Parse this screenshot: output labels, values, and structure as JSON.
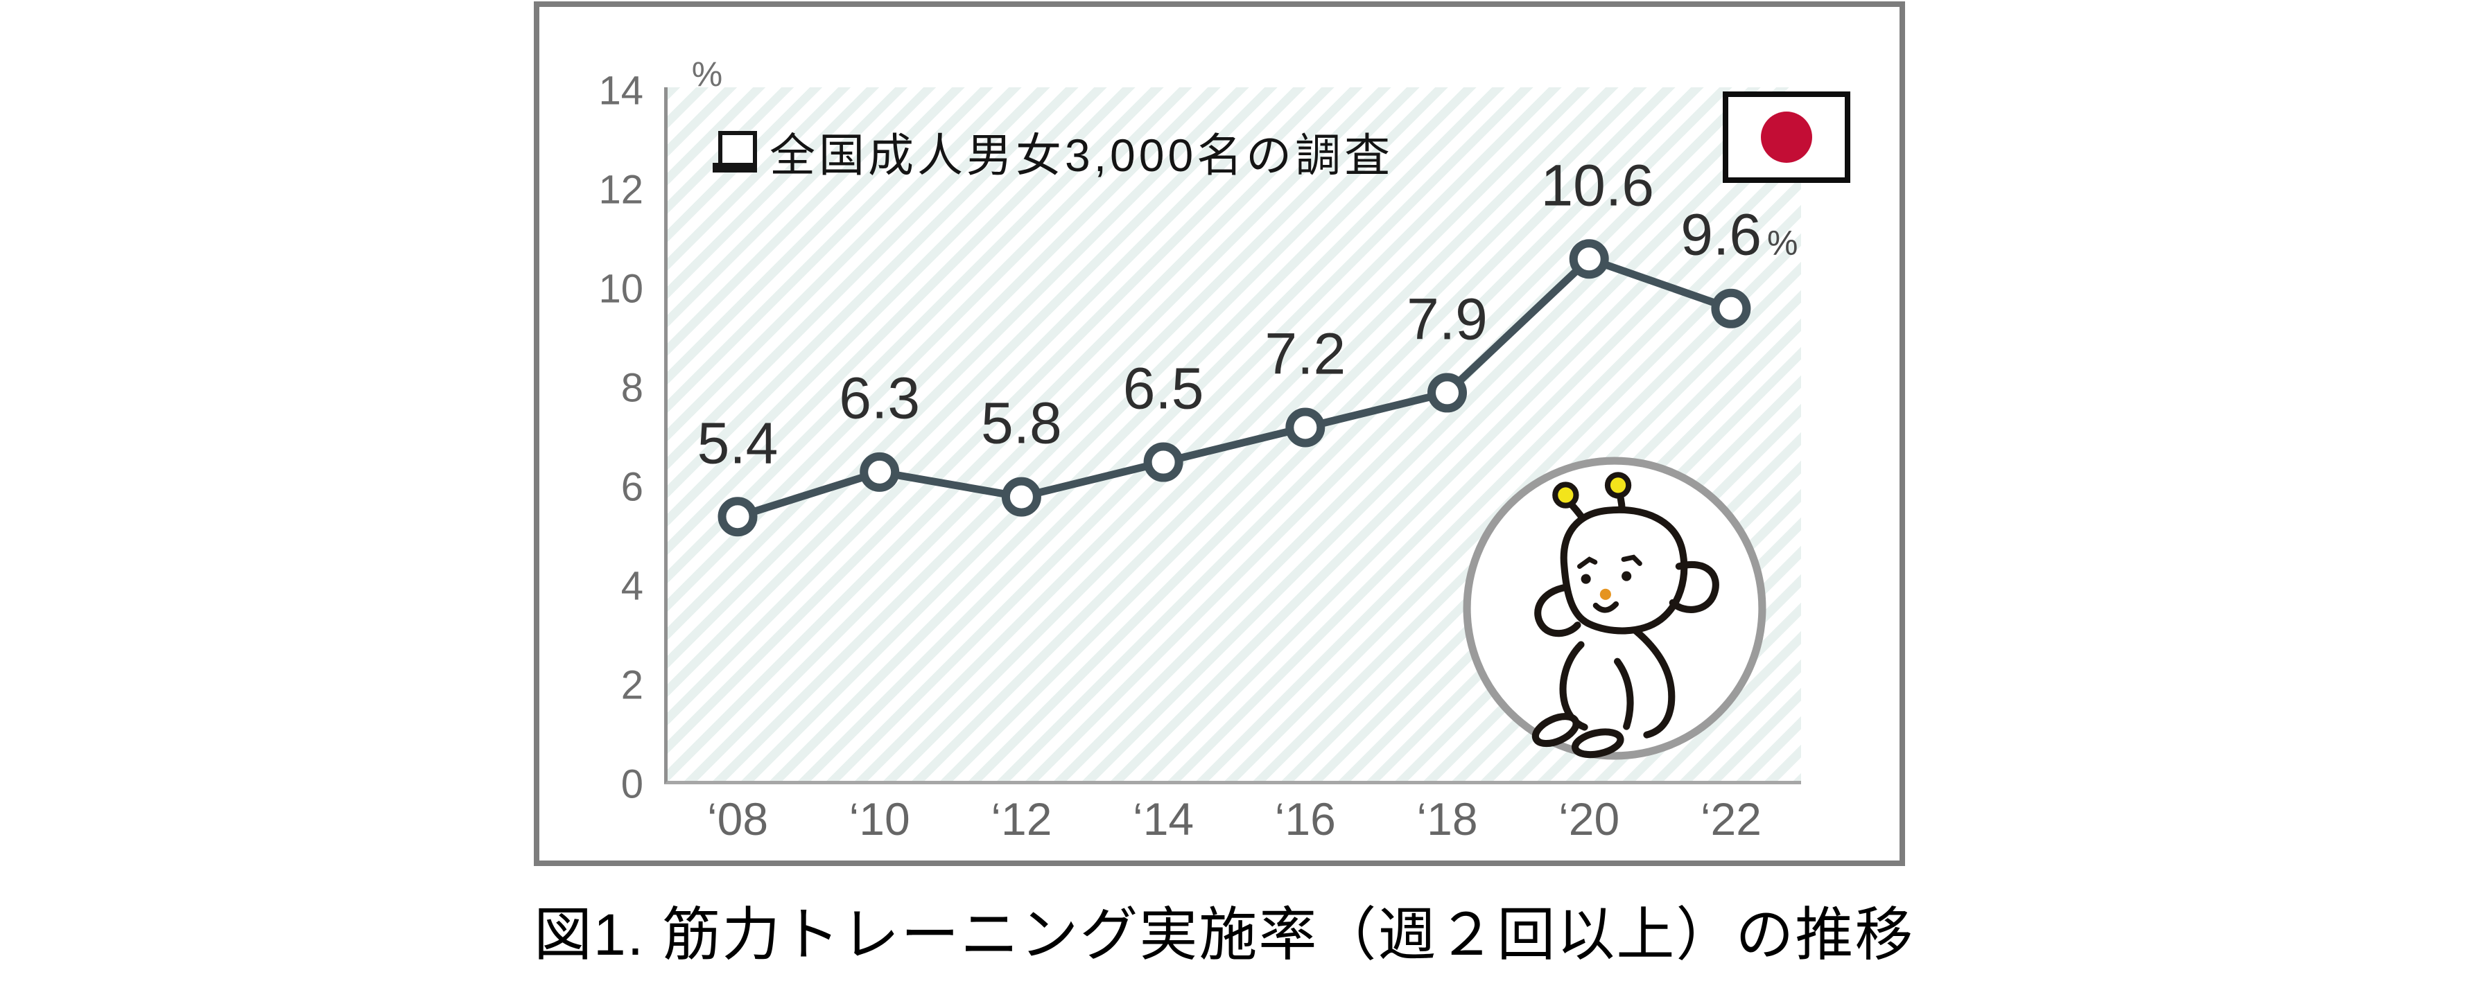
{
  "chart_data": {
    "type": "line",
    "title": "",
    "unit_label": "%",
    "categories": [
      "‘08",
      "‘10",
      "‘12",
      "‘14",
      "‘16",
      "‘18",
      "‘20",
      "‘22"
    ],
    "values": [
      5.4,
      6.3,
      5.8,
      6.5,
      7.2,
      7.9,
      10.6,
      9.6
    ],
    "point_labels": [
      "5.4",
      "6.3",
      "5.8",
      "6.5",
      "7.2",
      "7.9",
      "10.6",
      "9.6"
    ],
    "last_point_suffix": "%",
    "xlabel": "",
    "ylabel": "%",
    "ylim": [
      0,
      14
    ],
    "yticks": [
      0,
      2,
      4,
      6,
      8,
      10,
      12,
      14
    ],
    "grid": false,
    "legend": "none",
    "plot_background": "diagonal-stripes"
  },
  "annotation": {
    "bullet_icon": "checkbox-icon",
    "text": "全国成人男女3,000名の調査"
  },
  "flag": {
    "name": "japan-flag",
    "alt": "Flag of Japan"
  },
  "mascot": {
    "name": "sitting-bug-character",
    "description": "hand-drawn bug-like character reclining with hands behind head inside gray circle"
  },
  "caption": "図1. 筋力トレーニング実施率（週２回以上）の推移",
  "colors": {
    "line": "#42525a",
    "marker_fill": "#ffffff",
    "stripe": "#e8f1ef",
    "axis_gray": "#8f8f8f",
    "baseline_gray": "#a6a6a6",
    "tick_label_gray": "#6e6e6e",
    "data_label": "#2e2e2e",
    "box_border": "#7d7d7d",
    "flag_red": "#c30d35",
    "antenna_yellow": "#f3e41b",
    "nose_orange": "#e5941f",
    "mascot_ring": "#9b9b9b",
    "ink": "#1b1511"
  }
}
